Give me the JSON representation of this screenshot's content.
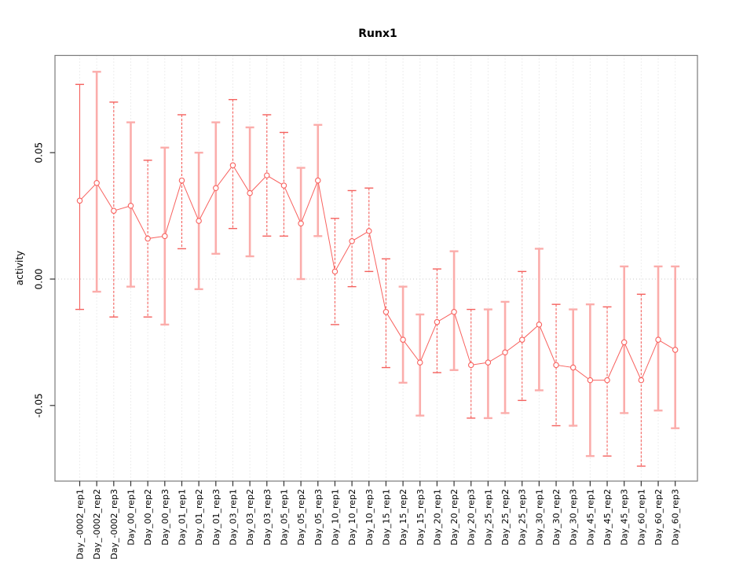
{
  "title": "Runx1",
  "chart_data": {
    "type": "line",
    "title": "Runx1",
    "xlabel": "",
    "ylabel": "activity",
    "legend_position": "none",
    "grid": {
      "vertical_dotted": true,
      "horizontal_zero_dotted": true
    },
    "ylim": [
      -0.08,
      0.089
    ],
    "yticks": [
      0.05,
      0.0,
      -0.05
    ],
    "ytick_labels": [
      "0.05",
      "0.00",
      "-0.05"
    ],
    "categories": [
      "Day_-0002_rep1",
      "Day_-0002_rep2",
      "Day_-0002_rep3",
      "Day_00_rep1",
      "Day_00_rep2",
      "Day_00_rep3",
      "Day_01_rep1",
      "Day_01_rep2",
      "Day_01_rep3",
      "Day_03_rep1",
      "Day_03_rep2",
      "Day_03_rep3",
      "Day_05_rep1",
      "Day_05_rep2",
      "Day_05_rep3",
      "Day_10_rep1",
      "Day_10_rep2",
      "Day_10_rep3",
      "Day_15_rep1",
      "Day_15_rep2",
      "Day_15_rep3",
      "Day_20_rep1",
      "Day_20_rep2",
      "Day_20_rep3",
      "Day_25_rep1",
      "Day_25_rep2",
      "Day_25_rep3",
      "Day_30_rep1",
      "Day_30_rep2",
      "Day_30_rep3",
      "Day_45_rep1",
      "Day_45_rep2",
      "Day_45_rep3",
      "Day_60_rep1",
      "Day_60_rep2",
      "Day_60_rep3"
    ],
    "values": [
      0.031,
      0.038,
      0.027,
      0.029,
      0.016,
      0.017,
      0.039,
      0.023,
      0.036,
      0.045,
      0.034,
      0.041,
      0.037,
      0.022,
      0.039,
      0.003,
      0.015,
      0.019,
      -0.013,
      -0.024,
      -0.033,
      -0.017,
      -0.013,
      -0.034,
      -0.033,
      -0.029,
      -0.024,
      -0.018,
      -0.034,
      -0.035,
      -0.04,
      -0.04,
      -0.025,
      -0.04,
      -0.024,
      -0.028
    ],
    "error_high": [
      0.077,
      0.082,
      0.07,
      0.062,
      0.047,
      0.052,
      0.065,
      0.05,
      0.062,
      0.071,
      0.06,
      0.065,
      0.058,
      0.044,
      0.061,
      0.024,
      0.035,
      0.036,
      0.008,
      -0.003,
      -0.014,
      0.004,
      0.011,
      -0.012,
      -0.012,
      -0.009,
      0.003,
      0.012,
      -0.01,
      -0.012,
      -0.01,
      -0.011,
      0.005,
      -0.006,
      0.005,
      0.005
    ],
    "error_low": [
      -0.012,
      -0.005,
      -0.015,
      -0.003,
      -0.015,
      -0.018,
      0.012,
      -0.004,
      0.01,
      0.02,
      0.009,
      0.017,
      0.017,
      0.0,
      0.017,
      -0.018,
      -0.003,
      0.003,
      -0.035,
      -0.041,
      -0.054,
      -0.037,
      -0.036,
      -0.055,
      -0.055,
      -0.053,
      -0.048,
      -0.044,
      -0.058,
      -0.058,
      -0.07,
      -0.07,
      -0.053,
      -0.074,
      -0.052,
      -0.059
    ],
    "bar_styles": [
      "s",
      "t",
      "d",
      "t",
      "d",
      "t",
      "d",
      "t",
      "t",
      "d",
      "t",
      "d",
      "d",
      "t",
      "t",
      "d",
      "d",
      "d",
      "d",
      "t",
      "t",
      "d",
      "t",
      "d",
      "t",
      "t",
      "d",
      "t",
      "d",
      "t",
      "t",
      "d",
      "t",
      "d",
      "t",
      "t"
    ],
    "colors": {
      "series": "#f8625f",
      "error_thin": "#f4615e",
      "error_thick": "#fbadab",
      "point_fill": "#ffffff",
      "grid": "#dcdcdc",
      "zero_line": "#c8c8c8",
      "box": "#7a7a7a",
      "tick": "#333333",
      "text": "#000000"
    }
  }
}
